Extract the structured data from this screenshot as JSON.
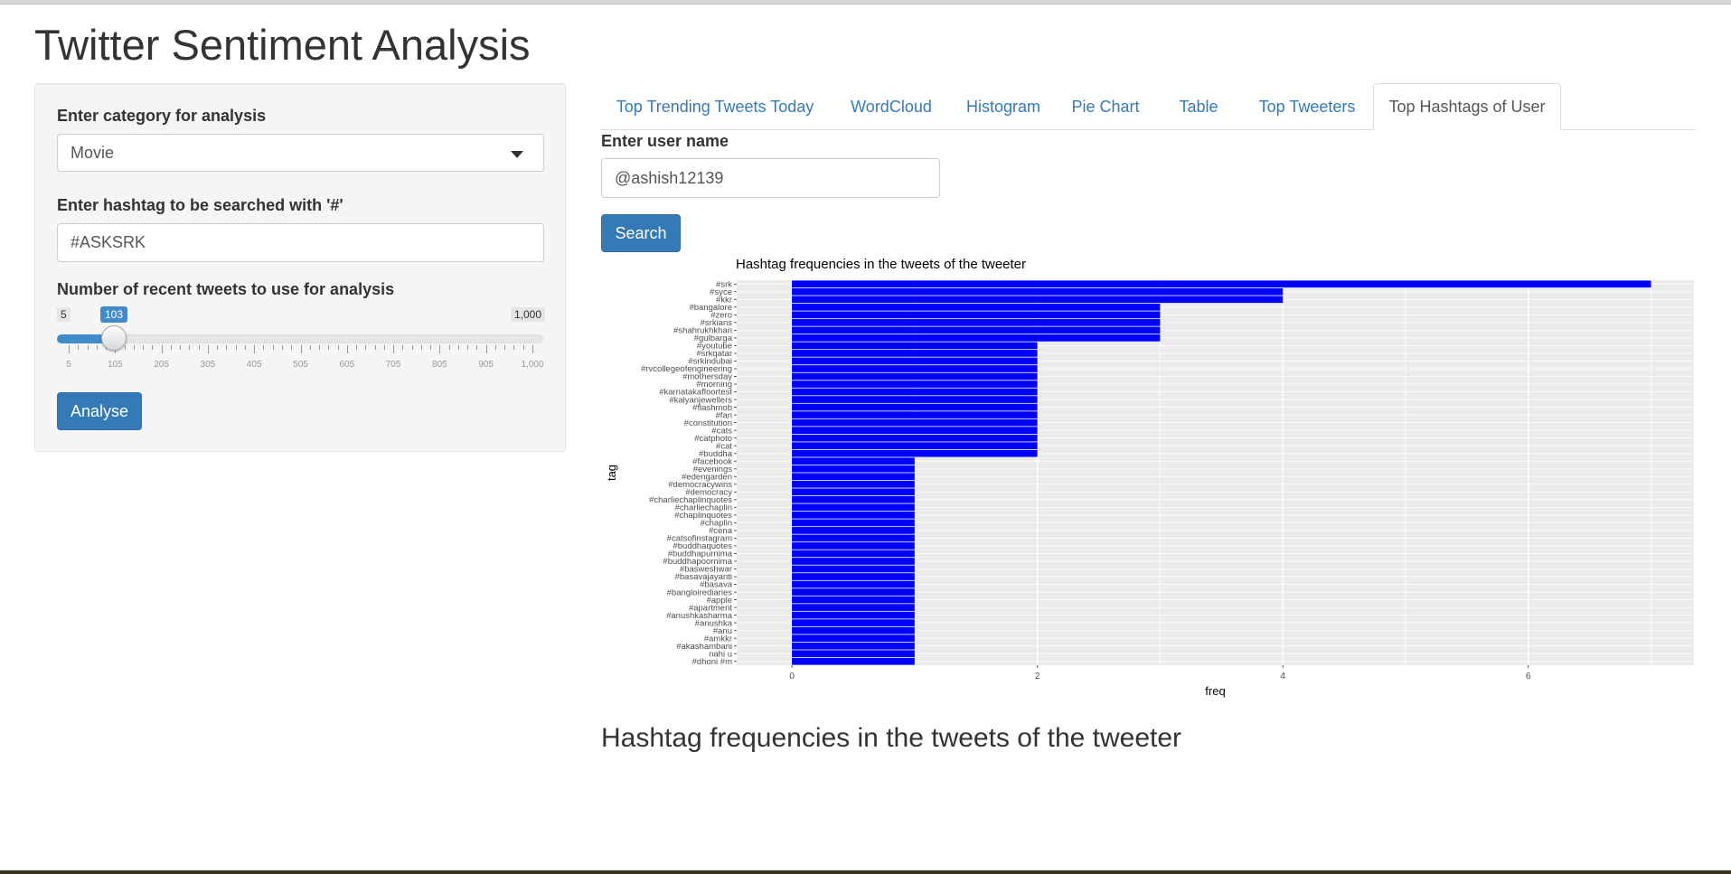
{
  "app": {
    "title": "Twitter Sentiment Analysis"
  },
  "sidebar": {
    "category_label": "Enter category for analysis",
    "category_value": "Movie",
    "hashtag_label": "Enter hashtag to be searched with '#'",
    "hashtag_value": "#ASKSRK",
    "tweets_label": "Number of recent tweets to use for analysis",
    "slider": {
      "min_label": "5",
      "max_label": "1,000",
      "value_label": "103",
      "value": 103,
      "min": 5,
      "max": 1000,
      "tick_labels": [
        "5",
        "105",
        "205",
        "305",
        "405",
        "505",
        "605",
        "705",
        "805",
        "905",
        "1,000"
      ]
    },
    "analyse_label": "Analyse"
  },
  "tabs": [
    {
      "label": "Top Trending Tweets Today",
      "active": false
    },
    {
      "label": "WordCloud",
      "active": false
    },
    {
      "label": "Histogram",
      "active": false
    },
    {
      "label": "Pie Chart",
      "active": false
    },
    {
      "label": "Table",
      "active": false
    },
    {
      "label": "Top Tweeters",
      "active": false
    },
    {
      "label": "Top Hashtags of User",
      "active": true
    }
  ],
  "user": {
    "label": "Enter user name",
    "value": "@ashish12139",
    "search_label": "Search"
  },
  "chart_heading": "Hashtag frequencies in the tweets of the tweeter",
  "chart_data": {
    "type": "bar",
    "orientation": "horizontal",
    "title": "Hashtag frequencies in the tweets of the tweeter",
    "xlabel": "freq",
    "ylabel": "tag",
    "xlim": [
      0,
      7.35
    ],
    "x_ticks": [
      0,
      2,
      4,
      6
    ],
    "bar_color": "#0000ff",
    "panel_color": "#ebebeb",
    "grid": true,
    "categories": [
      "#srk",
      "#syce",
      "#kkr",
      "#bangalore",
      "#zero",
      "#srkians",
      "#shahrukhkhan",
      "#gulbarga",
      "#youtube",
      "#srkqatar",
      "#srkindubai",
      "#rvcollegeofengineering",
      "#mothersday",
      "#morning",
      "#karnatakafloortest",
      "#kalyanjewellers",
      "#flashmob",
      "#fan",
      "#constitution",
      "#cats",
      "#catphoto",
      "#cat",
      "#buddha",
      "#facebook",
      "#evenings",
      "#edengarden",
      "#democracywins",
      "#democracy",
      "#charliechaplinquotes",
      "#charliechaplin",
      "#chaplinquotes",
      "#chaplin",
      "#cena",
      "#catsofinstagram",
      "#buddhaquotes",
      "#buddhapurnima",
      "#buddhapoornima",
      "#basweshwar",
      "#basavajayanti",
      "#basava",
      "#bangloirediaries",
      "#apple",
      "#apartment",
      "#anushkasharma",
      "#anushka",
      "#anu",
      "#amkkr",
      "#akashambani",
      "nahi u",
      "#dhoni #m"
    ],
    "values": [
      7,
      4,
      4,
      3,
      3,
      3,
      3,
      3,
      2,
      2,
      2,
      2,
      2,
      2,
      2,
      2,
      2,
      2,
      2,
      2,
      2,
      2,
      2,
      1,
      1,
      1,
      1,
      1,
      1,
      1,
      1,
      1,
      1,
      1,
      1,
      1,
      1,
      1,
      1,
      1,
      1,
      1,
      1,
      1,
      1,
      1,
      1,
      1,
      1,
      1
    ]
  }
}
